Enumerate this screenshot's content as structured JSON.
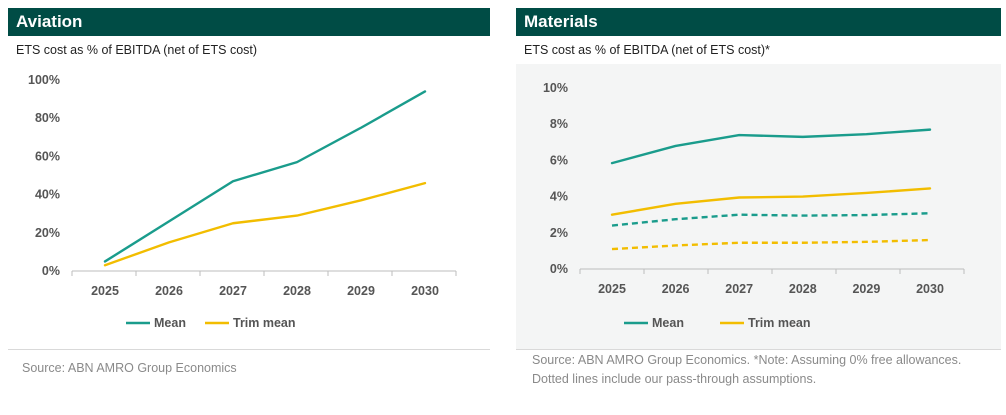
{
  "colors": {
    "header_bg": "#004c45",
    "mean": "#1a9c8c",
    "trim_mean": "#f2bd00",
    "plot_bg_materials": "#f4f5f5"
  },
  "panels": [
    {
      "title": "Aviation",
      "subtitle": "ETS cost as % of EBITDA (net of ETS cost)",
      "source": "Source: ABN AMRO Group Economics"
    },
    {
      "title": "Materials",
      "subtitle": "ETS cost as % of EBITDA (net of ETS cost)*",
      "source": "Source: ABN AMRO Group Economics. *Note: Assuming 0% free allowances. Dotted lines include our pass-through assumptions."
    }
  ],
  "chart_data": [
    {
      "type": "line",
      "x": [
        "2025",
        "2026",
        "2027",
        "2028",
        "2029",
        "2030"
      ],
      "ylim": [
        0,
        100
      ],
      "yticks": [
        "0%",
        "20%",
        "40%",
        "60%",
        "80%",
        "100%"
      ],
      "ytick_values": [
        0,
        20,
        40,
        60,
        80,
        100
      ],
      "grid": false,
      "legend_position": "bottom",
      "series": [
        {
          "name": "Mean",
          "values": [
            5,
            26,
            47,
            57,
            75,
            94
          ],
          "color": "#1a9c8c",
          "dashed": false
        },
        {
          "name": "Trim mean",
          "values": [
            3,
            15,
            25,
            29,
            37,
            46
          ],
          "color": "#f2bd00",
          "dashed": false
        }
      ]
    },
    {
      "type": "line",
      "x": [
        "2025",
        "2026",
        "2027",
        "2028",
        "2029",
        "2030"
      ],
      "ylim": [
        0,
        10
      ],
      "yticks": [
        "0%",
        "2%",
        "4%",
        "6%",
        "8%",
        "10%"
      ],
      "ytick_values": [
        0,
        2,
        4,
        6,
        8,
        10
      ],
      "grid": false,
      "legend_position": "bottom",
      "series": [
        {
          "name": "Mean",
          "values": [
            5.85,
            6.8,
            7.4,
            7.3,
            7.45,
            7.7
          ],
          "color": "#1a9c8c",
          "dashed": false
        },
        {
          "name": "Trim mean",
          "values": [
            3.0,
            3.6,
            3.95,
            4.0,
            4.2,
            4.45
          ],
          "color": "#f2bd00",
          "dashed": false
        },
        {
          "values": [
            2.4,
            2.75,
            3.0,
            2.95,
            2.98,
            3.08
          ],
          "color": "#1a9c8c",
          "dashed": true
        },
        {
          "values": [
            1.1,
            1.3,
            1.45,
            1.45,
            1.5,
            1.6
          ],
          "color": "#f2bd00",
          "dashed": true
        }
      ]
    }
  ]
}
